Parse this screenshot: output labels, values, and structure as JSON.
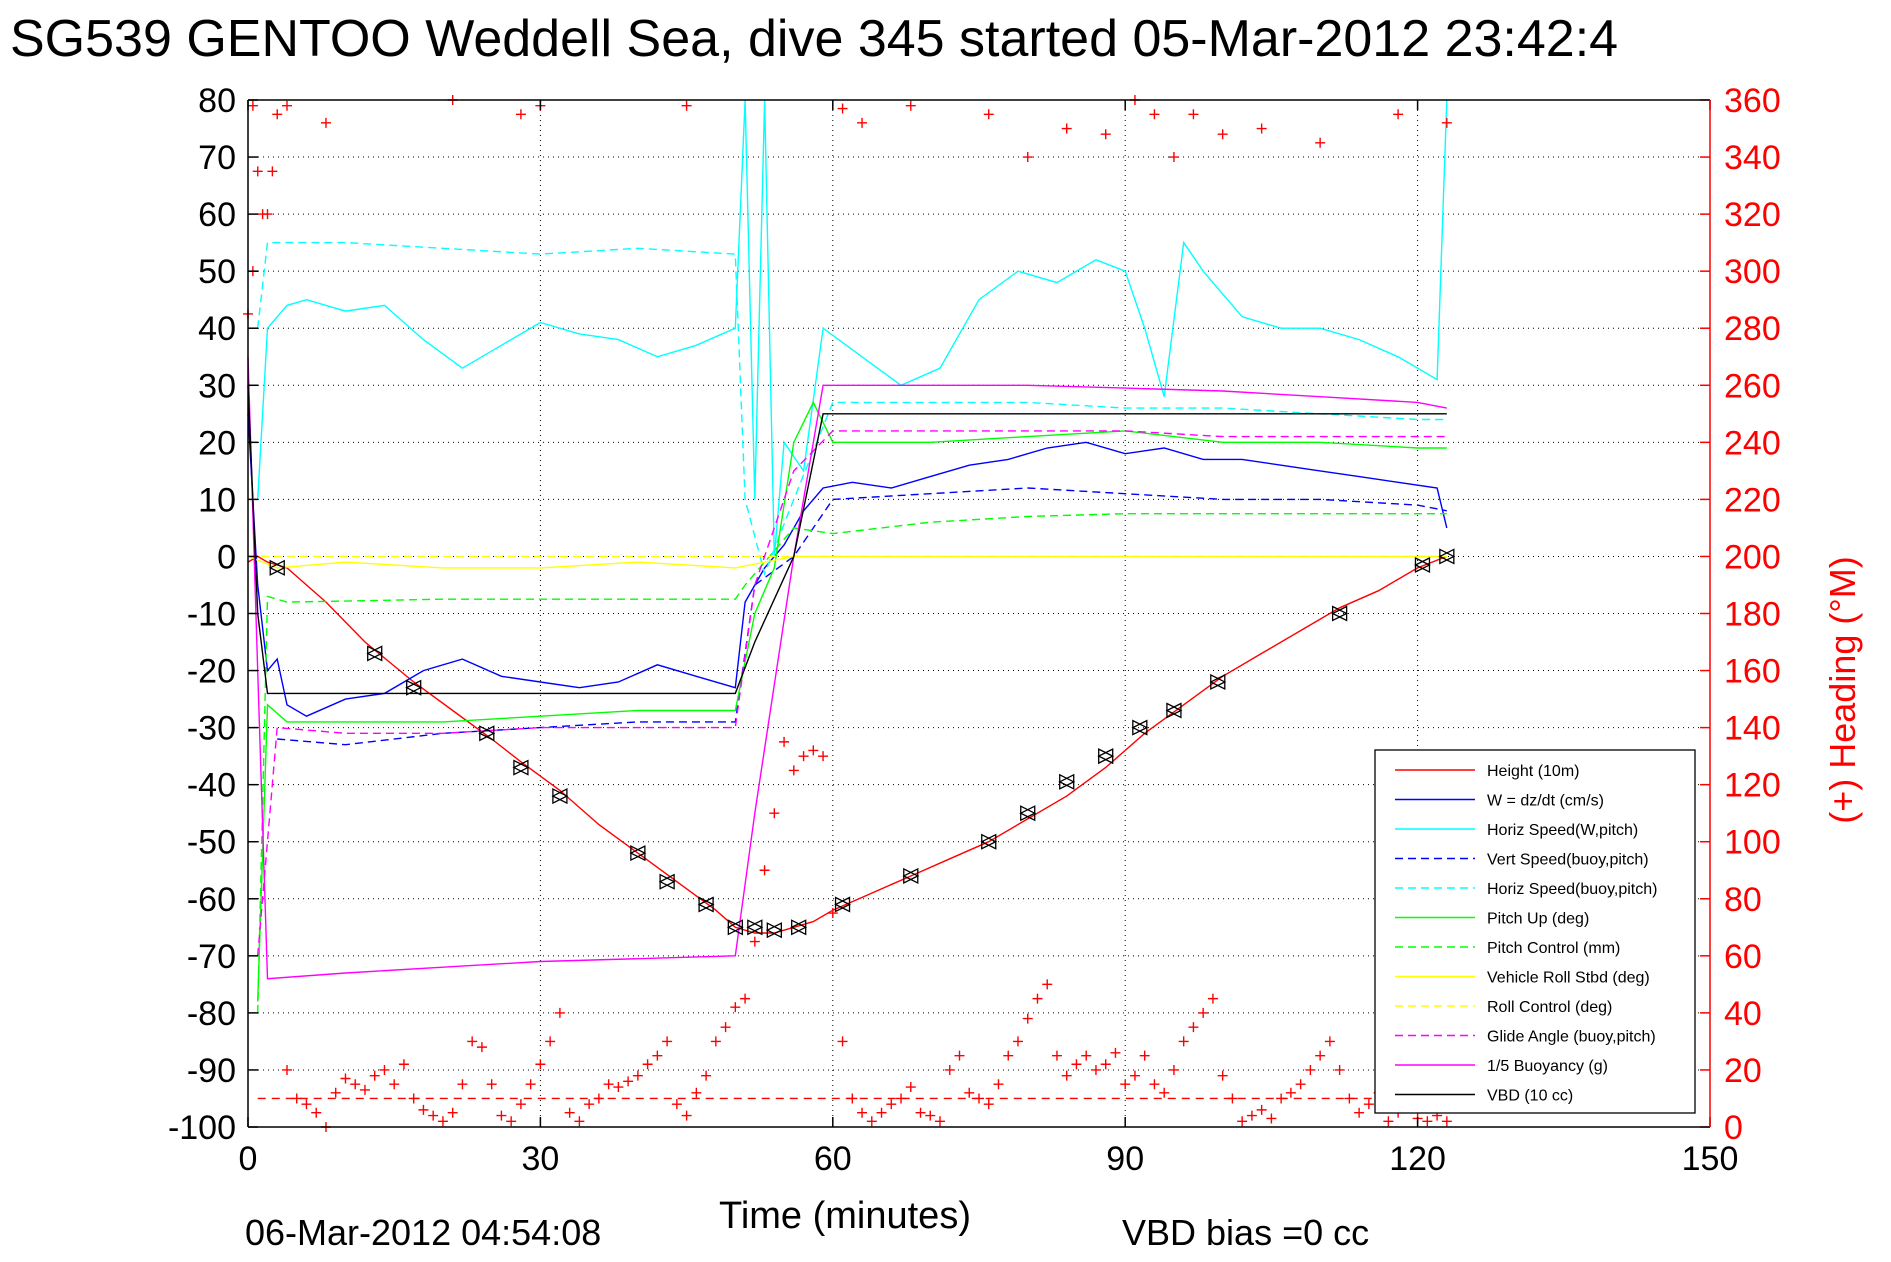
{
  "page": {
    "title": "SG539 GENTOO Weddell Sea, dive 345 started 05-Mar-2012 23:42:4",
    "xlabel": "Time (minutes)",
    "ylabel_right": "(+) Heading (°M)",
    "footer_date": "06-Mar-2012 04:54:08",
    "footer_vbd": "VBD bias =0 cc"
  },
  "colors": {
    "red": "#ff0000",
    "blue": "#0000ff",
    "cyan": "#00ffff",
    "green": "#00ff00",
    "yellow": "#ffff00",
    "magenta": "#ff00ff",
    "black": "#000000"
  },
  "chart_data": {
    "type": "line",
    "grid": true,
    "xlim": [
      0,
      150
    ],
    "ylim": [
      -100,
      80
    ],
    "y2lim": [
      0,
      360
    ],
    "x_ticks": [
      "0",
      "30",
      "60",
      "90",
      "120",
      "150"
    ],
    "y_ticks": [
      "80",
      "70",
      "60",
      "50",
      "40",
      "30",
      "20",
      "10",
      "0",
      "-10",
      "-20",
      "-30",
      "-40",
      "-50",
      "-60",
      "-70",
      "-80",
      "-90",
      "-100"
    ],
    "y2_ticks": [
      "360",
      "340",
      "320",
      "300",
      "280",
      "260",
      "240",
      "220",
      "200",
      "180",
      "160",
      "140",
      "120",
      "100",
      "80",
      "60",
      "40",
      "20",
      "0"
    ],
    "legend_position": "bottom-right",
    "series": [
      {
        "name": "Height (10m)",
        "color": "#ff0000",
        "dash": "solid",
        "x": [
          0,
          1,
          2,
          4,
          8,
          12,
          17,
          21,
          25,
          28,
          32,
          36,
          40,
          44,
          48,
          50,
          52,
          54,
          56,
          58,
          60,
          64,
          68,
          72,
          76,
          80,
          84,
          88,
          92,
          96,
          100,
          104,
          108,
          112,
          116,
          120,
          123
        ],
        "y": [
          -1,
          0,
          -1,
          -2,
          -8,
          -15,
          -22,
          -27,
          -32,
          -36,
          -41,
          -47,
          -52,
          -57,
          -62,
          -65,
          -66,
          -66,
          -65,
          -64,
          -62,
          -59,
          -56,
          -53,
          -50,
          -46,
          -42,
          -37,
          -31,
          -26,
          -21,
          -17,
          -13,
          -9,
          -6,
          -2,
          0
        ]
      },
      {
        "name": "W = dz/dt (cm/s)",
        "color": "#0000ff",
        "dash": "solid",
        "x": [
          0,
          1,
          2,
          3,
          4,
          6,
          10,
          14,
          18,
          22,
          26,
          30,
          34,
          38,
          42,
          46,
          50,
          51,
          53,
          55,
          57,
          59,
          62,
          66,
          70,
          74,
          78,
          82,
          86,
          90,
          94,
          98,
          102,
          106,
          110,
          114,
          118,
          122,
          123
        ],
        "y": [
          25,
          -5,
          -20,
          -18,
          -26,
          -28,
          -25,
          -24,
          -20,
          -18,
          -21,
          -22,
          -23,
          -22,
          -19,
          -21,
          -23,
          -8,
          -2,
          2,
          8,
          12,
          13,
          12,
          14,
          16,
          17,
          19,
          20,
          18,
          19,
          17,
          17,
          16,
          15,
          14,
          13,
          12,
          5
        ]
      },
      {
        "name": "Horiz Speed(W,pitch)",
        "color": "#00ffff",
        "dash": "solid",
        "x": [
          1,
          2,
          4,
          6,
          10,
          14,
          18,
          22,
          26,
          30,
          34,
          38,
          42,
          46,
          50,
          51,
          52,
          53,
          54,
          55,
          57,
          59,
          63,
          67,
          71,
          75,
          79,
          83,
          87,
          90,
          92,
          94,
          96,
          98,
          102,
          106,
          110,
          114,
          118,
          122,
          123
        ],
        "y": [
          10,
          40,
          44,
          45,
          43,
          44,
          38,
          33,
          37,
          41,
          39,
          38,
          35,
          37,
          40,
          80,
          10,
          80,
          0,
          20,
          15,
          40,
          35,
          30,
          33,
          45,
          50,
          48,
          52,
          50,
          40,
          28,
          55,
          50,
          42,
          40,
          40,
          38,
          35,
          31,
          80
        ]
      },
      {
        "name": "Vert Speed(buoy,pitch)",
        "color": "#0000ff",
        "dash": "dashed",
        "x": [
          3,
          10,
          20,
          30,
          40,
          50,
          52,
          56,
          60,
          70,
          80,
          90,
          100,
          110,
          120,
          123
        ],
        "y": [
          -32,
          -33,
          -31,
          -30,
          -29,
          -29,
          -5,
          0,
          10,
          11,
          12,
          11,
          10,
          10,
          9,
          8
        ]
      },
      {
        "name": "Horiz Speed(buoy,pitch)",
        "color": "#00ffff",
        "dash": "dashed",
        "x": [
          1,
          2,
          10,
          20,
          30,
          40,
          50,
          51,
          53,
          56,
          60,
          70,
          80,
          90,
          100,
          110,
          120,
          123
        ],
        "y": [
          40,
          55,
          55,
          54,
          53,
          54,
          53,
          10,
          -3,
          10,
          27,
          27,
          27,
          26,
          26,
          25,
          24,
          24
        ]
      },
      {
        "name": "Pitch Up (deg)",
        "color": "#00ff00",
        "dash": "solid",
        "x": [
          1,
          2,
          4,
          10,
          20,
          30,
          40,
          50,
          52,
          54,
          56,
          58,
          60,
          70,
          80,
          90,
          100,
          110,
          120,
          123
        ],
        "y": [
          -78,
          -26,
          -29,
          -29,
          -29,
          -28,
          -27,
          -27,
          -10,
          -2,
          20,
          27,
          20,
          20,
          21,
          22,
          20,
          20,
          19,
          19
        ]
      },
      {
        "name": "Pitch Control (mm)",
        "color": "#00ff00",
        "dash": "dashed",
        "x": [
          1,
          2,
          4,
          20,
          40,
          50,
          51,
          56,
          60,
          70,
          80,
          90,
          100,
          110,
          120,
          123
        ],
        "y": [
          -80,
          -7,
          -8,
          -7.5,
          -7.5,
          -7.5,
          -5,
          5,
          4,
          6,
          7,
          7.5,
          7.5,
          7.5,
          7.5,
          7.5
        ]
      },
      {
        "name": "Vehicle Roll Stbd (deg)",
        "color": "#ffff00",
        "dash": "solid",
        "x": [
          0,
          3,
          10,
          20,
          30,
          40,
          50,
          56,
          60,
          70,
          80,
          90,
          100,
          110,
          120,
          123
        ],
        "y": [
          0,
          -2,
          -1,
          -2,
          -2,
          -1,
          -2,
          0,
          0,
          0,
          0,
          0,
          0,
          0,
          0,
          0
        ]
      },
      {
        "name": "Roll Control (deg)",
        "color": "#ffff00",
        "dash": "dashed",
        "x": [
          0,
          3,
          20,
          40,
          50,
          56,
          60,
          80,
          100,
          120,
          123
        ],
        "y": [
          0,
          0,
          0,
          0,
          0,
          0,
          0,
          0,
          0,
          0,
          0
        ]
      },
      {
        "name": "Glide Angle (buoy,pitch)",
        "color": "#ff00ff",
        "dash": "dashed",
        "x": [
          1,
          3,
          10,
          20,
          30,
          40,
          50,
          52,
          56,
          60,
          70,
          80,
          90,
          100,
          110,
          120,
          123
        ],
        "y": [
          -70,
          -30,
          -31,
          -31,
          -30,
          -30,
          -30,
          -5,
          15,
          22,
          22,
          22,
          22,
          21,
          21,
          21,
          21
        ]
      },
      {
        "name": "1/5 Buoyancy (g)",
        "color": "#ff00ff",
        "dash": "solid",
        "x": [
          0,
          1,
          2,
          10,
          20,
          30,
          40,
          50,
          52,
          56,
          59,
          70,
          80,
          90,
          100,
          110,
          120,
          123
        ],
        "y": [
          35,
          -20,
          -74,
          -73,
          -72,
          -71,
          -70.5,
          -70,
          -45,
          0,
          30,
          30,
          30,
          29.5,
          29,
          28,
          27,
          26
        ]
      },
      {
        "name": "VBD (10 cc)",
        "color": "#000000",
        "dash": "solid",
        "x": [
          0,
          1,
          2,
          3,
          10,
          20,
          30,
          40,
          50,
          52,
          56,
          59,
          70,
          80,
          90,
          100,
          110,
          120,
          123
        ],
        "y": [
          30,
          -10,
          -24,
          -24,
          -24,
          -24,
          -24,
          -24,
          -24,
          -15,
          0,
          25,
          25,
          25,
          25,
          25,
          25,
          25,
          25
        ]
      }
    ],
    "height_markers": [
      {
        "x": 3,
        "y": -2
      },
      {
        "x": 13,
        "y": -17
      },
      {
        "x": 17,
        "y": -23
      },
      {
        "x": 24.5,
        "y": -31
      },
      {
        "x": 28,
        "y": -37
      },
      {
        "x": 32,
        "y": -42
      },
      {
        "x": 40,
        "y": -52
      },
      {
        "x": 43,
        "y": -57
      },
      {
        "x": 47,
        "y": -61
      },
      {
        "x": 50,
        "y": -65
      },
      {
        "x": 52,
        "y": -65
      },
      {
        "x": 54,
        "y": -65.5
      },
      {
        "x": 56.5,
        "y": -65
      },
      {
        "x": 61,
        "y": -61
      },
      {
        "x": 68,
        "y": -56
      },
      {
        "x": 76,
        "y": -50
      },
      {
        "x": 80,
        "y": -45
      },
      {
        "x": 84,
        "y": -39.5
      },
      {
        "x": 88,
        "y": -35
      },
      {
        "x": 91.5,
        "y": -30
      },
      {
        "x": 95,
        "y": -27
      },
      {
        "x": 99.5,
        "y": -22
      },
      {
        "x": 112,
        "y": -10
      },
      {
        "x": 120.5,
        "y": -1.5
      },
      {
        "x": 123,
        "y": 0
      }
    ],
    "heading_reference": {
      "y2": 10,
      "color": "#ff0000",
      "dash": "dashed"
    },
    "heading": {
      "x": [
        0,
        0.5,
        1,
        1.5,
        2,
        2.5,
        3,
        4,
        5,
        6,
        7,
        8,
        9,
        10,
        11,
        12,
        13,
        14,
        15,
        16,
        17,
        18,
        19,
        20,
        21,
        22,
        23,
        24,
        25,
        26,
        27,
        28,
        29,
        30,
        31,
        32,
        33,
        34,
        35,
        36,
        37,
        38,
        39,
        40,
        41,
        42,
        43,
        44,
        45,
        46,
        47,
        48,
        49,
        50,
        51,
        52,
        53,
        54,
        55,
        56,
        57,
        58,
        59,
        60,
        61,
        62,
        63,
        64,
        65,
        66,
        67,
        68,
        69,
        70,
        71,
        72,
        73,
        74,
        75,
        76,
        77,
        78,
        79,
        80,
        81,
        82,
        83,
        84,
        85,
        86,
        87,
        88,
        89,
        90,
        91,
        92,
        93,
        94,
        95,
        96,
        97,
        98,
        99,
        100,
        101,
        102,
        103,
        104,
        105,
        106,
        107,
        108,
        109,
        110,
        111,
        112,
        113,
        114,
        115,
        116,
        117,
        118,
        119,
        120,
        121,
        122,
        123
      ],
      "y2": [
        285,
        300,
        335,
        320,
        320,
        335,
        355,
        20,
        10,
        8,
        5,
        0,
        12,
        17,
        15,
        13,
        18,
        20,
        15,
        22,
        10,
        6,
        4,
        2,
        5,
        15,
        30,
        28,
        15,
        4,
        2,
        8,
        15,
        22,
        30,
        40,
        5,
        2,
        8,
        10,
        15,
        14,
        16,
        18,
        22,
        25,
        30,
        8,
        4,
        12,
        18,
        30,
        35,
        42,
        45,
        65,
        90,
        110,
        135,
        125,
        130,
        132,
        130,
        75,
        30,
        10,
        5,
        2,
        5,
        8,
        10,
        14,
        5,
        4,
        2,
        20,
        25,
        12,
        10,
        8,
        15,
        25,
        30,
        38,
        45,
        50,
        25,
        18,
        22,
        25,
        20,
        22,
        26,
        15,
        18,
        25,
        15,
        12,
        20,
        30,
        35,
        40,
        45,
        18,
        10,
        2,
        4,
        6,
        3,
        10,
        12,
        15,
        20,
        25,
        30,
        20,
        10,
        5,
        8,
        12,
        2,
        5,
        8,
        3,
        2,
        4,
        2
      ]
    },
    "heading_top": {
      "x": [
        0.5,
        4,
        8,
        21,
        28,
        30,
        45,
        61,
        63,
        68,
        76,
        80,
        84,
        88,
        91,
        93,
        95,
        97,
        100,
        104,
        110,
        118,
        123
      ],
      "y2": [
        358,
        358,
        352,
        360,
        355,
        358,
        358,
        357,
        352,
        358,
        355,
        340,
        350,
        348,
        360,
        355,
        340,
        355,
        348,
        350,
        345,
        355,
        352
      ]
    }
  }
}
